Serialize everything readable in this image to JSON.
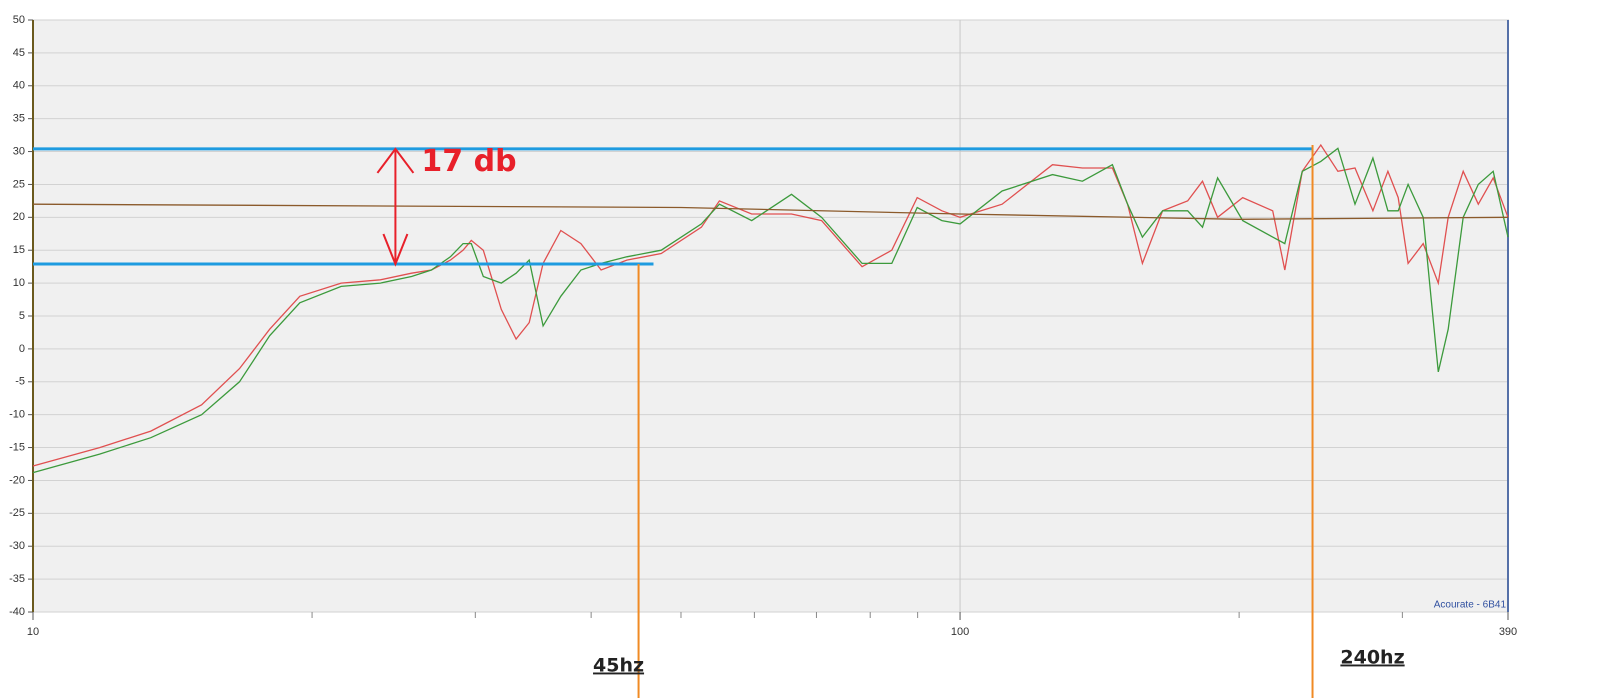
{
  "chart_data": {
    "type": "line",
    "log_x": true,
    "grid": true,
    "xlim": [
      10,
      390
    ],
    "ylim": [
      -40,
      50
    ],
    "xticks": [
      10,
      100,
      390
    ],
    "xminor": [
      20,
      30,
      40,
      50,
      60,
      70,
      80,
      90,
      200,
      300
    ],
    "yticks": [
      -40,
      -35,
      -30,
      -25,
      -20,
      -15,
      -10,
      -5,
      0,
      5,
      10,
      15,
      20,
      25,
      30,
      35,
      40,
      45,
      50
    ],
    "series": [
      {
        "color": "#e05050",
        "x": [
          10,
          11.8,
          13.4,
          15.2,
          16.7,
          18,
          19.4,
          21.5,
          23.7,
          25.6,
          26.9,
          28.2,
          29.1,
          29.7,
          30.6,
          32,
          33.2,
          34.3,
          35.5,
          37.1,
          39,
          41,
          43.7,
          47.6,
          52.6,
          55,
          59.6,
          65.8,
          70.9,
          78.4,
          84.4,
          89.9,
          95.6,
          100,
          111,
          125.8,
          135.5,
          146,
          151.6,
          157.3,
          165.4,
          176,
          182.6,
          189.6,
          201.8,
          217.4,
          224,
          234,
          245,
          255.6,
          266.7,
          278.8,
          289.4,
          296.9,
          304.3,
          315.9,
          328,
          336.2,
          348.9,
          362.3,
          375.9,
          390
        ],
        "values": [
          -17.8,
          -15,
          -12.5,
          -8.5,
          -3,
          3,
          8,
          10,
          10.5,
          11.5,
          12,
          13.5,
          15,
          16.5,
          15,
          6,
          1.5,
          4,
          13,
          18,
          16,
          12,
          13.5,
          14.5,
          18.5,
          22.5,
          20.5,
          20.5,
          19.5,
          12.5,
          15,
          23,
          21,
          20,
          22,
          28,
          27.5,
          27.5,
          22,
          13,
          21,
          22.5,
          25.5,
          20,
          23,
          21,
          12,
          27,
          31,
          27,
          27.5,
          21,
          27,
          23,
          13,
          16,
          10,
          20,
          27,
          22,
          26,
          20
        ]
      },
      {
        "color": "#3c9a3c",
        "x": [
          10,
          11.8,
          13.4,
          15.2,
          16.7,
          18,
          19.4,
          21.5,
          23.7,
          25.6,
          26.9,
          28.2,
          29.1,
          29.7,
          30.6,
          32,
          33.2,
          34.3,
          35.5,
          37.1,
          39,
          41,
          43.7,
          47.6,
          52.6,
          55,
          59.6,
          65.8,
          70.9,
          78.4,
          84.4,
          89.9,
          95.6,
          100,
          111,
          125.8,
          135.5,
          146,
          151.6,
          157.3,
          165.4,
          176,
          182.6,
          189.6,
          201.8,
          217.4,
          224,
          234,
          245,
          255.6,
          266.7,
          278.8,
          289.4,
          296.9,
          304.3,
          315.9,
          328,
          336.2,
          348.9,
          362.3,
          375.9,
          390
        ],
        "values": [
          -18.8,
          -16,
          -13.5,
          -10,
          -5,
          2,
          7,
          9.5,
          10,
          11,
          12,
          14,
          16,
          16,
          11,
          10,
          11.5,
          13.5,
          3.5,
          8,
          12,
          13,
          14,
          15,
          19,
          22,
          19.5,
          23.5,
          20,
          13,
          13,
          21.5,
          19.5,
          19,
          24,
          26.5,
          25.5,
          28,
          22,
          17,
          21,
          21,
          18.5,
          26,
          19.5,
          17,
          16,
          27,
          28.5,
          30.5,
          22,
          29,
          21,
          21,
          25,
          20,
          -3.5,
          3,
          20,
          25,
          27,
          17
        ]
      },
      {
        "color": "#8b5a2b",
        "x": [
          10,
          50,
          100,
          200,
          390
        ],
        "values": [
          22,
          21.5,
          20.5,
          19.7,
          20
        ]
      }
    ],
    "hlines": [
      {
        "value": 30.4,
        "x": [
          10,
          240
        ],
        "color": "#1e9be0"
      },
      {
        "value": 12.9,
        "x": [
          10,
          46.7
        ],
        "color": "#1e9be0"
      }
    ],
    "vlines": [
      {
        "x": 45,
        "top": 12.9,
        "label": "45hz",
        "color": "#f08a24"
      },
      {
        "x": 240,
        "top": 31,
        "label": "240hz",
        "color": "#f08a24"
      }
    ],
    "arrow": {
      "x": 24.6,
      "y": [
        30.4,
        12.9
      ],
      "label": "17 db",
      "color": "#e8202a"
    },
    "watermark": "Acourate - 6B41"
  }
}
